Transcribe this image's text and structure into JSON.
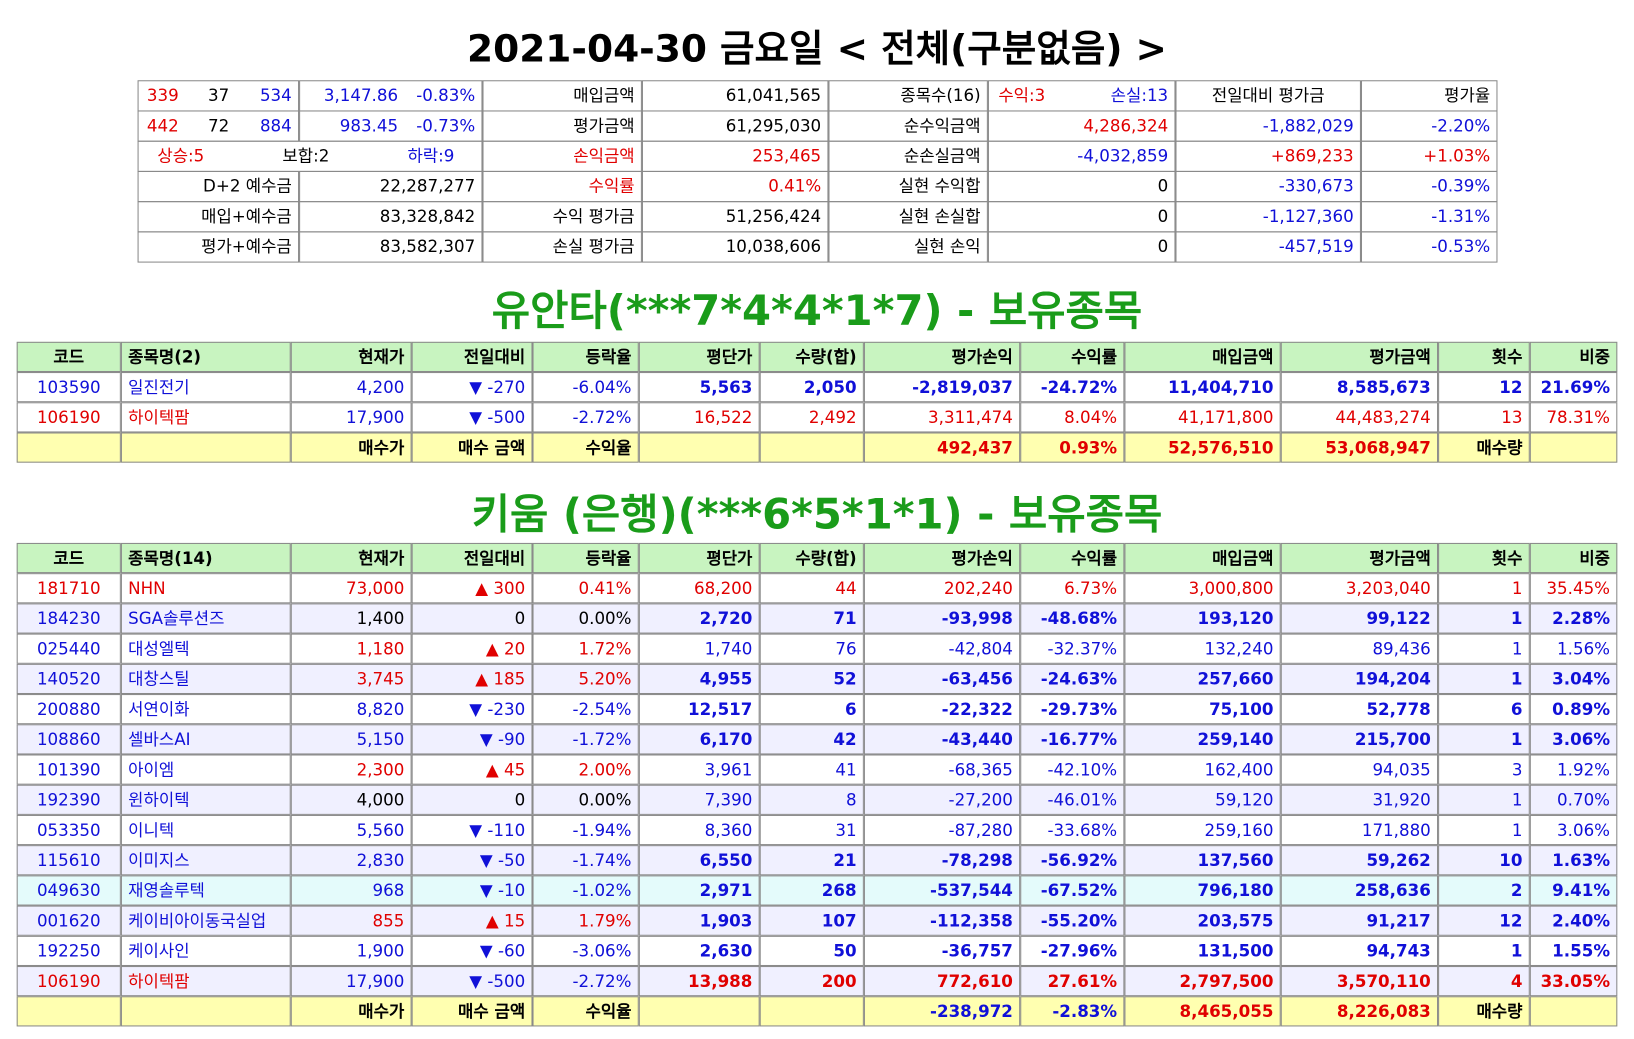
{
  "header": {
    "title": "2021-04-30 금요일 < 전체(구분없음) >"
  },
  "summary": {
    "rows": [
      [
        [
          "339",
          "37",
          "534"
        ],
        [
          "3,147.86",
          "-0.83%"
        ],
        "매입금액",
        "61,041,565",
        "종목수(16)",
        [
          "수익:3",
          "손실:13"
        ],
        "전일대비 평가금",
        "평가율"
      ],
      [
        [
          "442",
          "72",
          "884"
        ],
        [
          "983.45",
          "-0.73%"
        ],
        "평가금액",
        "61,295,030",
        "순수익금액",
        "4,286,324",
        "-1,882,029",
        "-2.20%"
      ],
      [
        [
          "상승:5",
          "보합:2",
          "하락:9"
        ],
        "손익금액",
        "253,465",
        "순손실금액",
        "-4,032,859",
        "+869,233",
        "+1.03%"
      ],
      [
        "D+2 예수금",
        "22,287,277",
        "수익률",
        "0.41%",
        "실현 수익합",
        "0",
        "-330,673",
        "-0.39%"
      ],
      [
        "매입+예수금",
        "83,328,842",
        "수익 평가금",
        "51,256,424",
        "실현 손실합",
        "0",
        "-1,127,360",
        "-1.31%"
      ],
      [
        "평가+예수금",
        "83,582,307",
        "손실 평가금",
        "10,038,606",
        "실현 손익",
        "0",
        "-457,519",
        "-0.53%"
      ]
    ]
  },
  "holdings1": {
    "title": "유안타(***7*4*4*1*7) - 보유종목",
    "header": [
      "코드",
      "종목명(2)",
      "현재가",
      "전일대비",
      "등락율",
      "평단가",
      "수량(합)",
      "평가손익",
      "수익률",
      "매입금액",
      "평가금액",
      "횟수",
      "비중"
    ],
    "rows": [
      [
        "103590",
        "일진전기",
        "4,200",
        "▼ -270",
        "-6.04%",
        "5,563",
        "2,050",
        "-2,819,037",
        "-24.72%",
        "11,404,710",
        "8,585,673",
        "12",
        "21.69%"
      ],
      [
        "106190",
        "하이텍팜",
        "17,900",
        "▼ -500",
        "-2.72%",
        "16,522",
        "2,492",
        "3,311,474",
        "8.04%",
        "41,171,800",
        "44,483,274",
        "13",
        "78.31%"
      ]
    ],
    "footer": [
      null,
      null,
      "매수가",
      "매수 금액",
      "수익율",
      null,
      null,
      "492,437",
      "0.93%",
      "52,576,510",
      "53,068,947",
      "매수량",
      null
    ]
  },
  "holdings2": {
    "title": "키움 (은행)(***6*5*1*1) - 보유종목",
    "header": [
      "코드",
      "종목명(14)",
      "현재가",
      "전일대비",
      "등락율",
      "평단가",
      "수량(합)",
      "평가손익",
      "수익률",
      "매입금액",
      "평가금액",
      "횟수",
      "비중"
    ],
    "rows": [
      [
        "181710",
        "NHN",
        "73,000",
        "▲ 300",
        "0.41%",
        "68,200",
        "44",
        "202,240",
        "6.73%",
        "3,000,800",
        "3,203,040",
        "1",
        "35.45%"
      ],
      [
        "184230",
        "SGA솔루션즈",
        "1,400",
        "0",
        "0.00%",
        "2,720",
        "71",
        "-93,998",
        "-48.68%",
        "193,120",
        "99,122",
        "1",
        "2.28%"
      ],
      [
        "025440",
        "대성엘텍",
        "1,180",
        "▲ 20",
        "1.72%",
        "1,740",
        "76",
        "-42,804",
        "-32.37%",
        "132,240",
        "89,436",
        "1",
        "1.56%"
      ],
      [
        "140520",
        "대창스틸",
        "3,745",
        "▲ 185",
        "5.20%",
        "4,955",
        "52",
        "-63,456",
        "-24.63%",
        "257,660",
        "194,204",
        "1",
        "3.04%"
      ],
      [
        "200880",
        "서연이화",
        "8,820",
        "▼ -230",
        "-2.54%",
        "12,517",
        "6",
        "-22,322",
        "-29.73%",
        "75,100",
        "52,778",
        "6",
        "0.89%"
      ],
      [
        "108860",
        "셀바스AI",
        "5,150",
        "▼ -90",
        "-1.72%",
        "6,170",
        "42",
        "-43,440",
        "-16.77%",
        "259,140",
        "215,700",
        "1",
        "3.06%"
      ],
      [
        "101390",
        "아이엠",
        "2,300",
        "▲ 45",
        "2.00%",
        "3,961",
        "41",
        "-68,365",
        "-42.10%",
        "162,400",
        "94,035",
        "3",
        "1.92%"
      ],
      [
        "192390",
        "윈하이텍",
        "4,000",
        "0",
        "0.00%",
        "7,390",
        "8",
        "-27,200",
        "-46.01%",
        "59,120",
        "31,920",
        "1",
        "0.70%"
      ],
      [
        "053350",
        "이니텍",
        "5,560",
        "▼ -110",
        "-1.94%",
        "8,360",
        "31",
        "-87,280",
        "-33.68%",
        "259,160",
        "171,880",
        "1",
        "3.06%"
      ],
      [
        "115610",
        "이미지스",
        "2,830",
        "▼ -50",
        "-1.74%",
        "6,550",
        "21",
        "-78,298",
        "-56.92%",
        "137,560",
        "59,262",
        "10",
        "1.63%"
      ],
      [
        "049630",
        "재영솔루텍",
        "968",
        "▼ -10",
        "-1.02%",
        "2,971",
        "268",
        "-537,544",
        "-67.52%",
        "796,180",
        "258,636",
        "2",
        "9.41%"
      ],
      [
        "001620",
        "케이비아이동국실업",
        "855",
        "▲ 15",
        "1.79%",
        "1,903",
        "107",
        "-112,358",
        "-55.20%",
        "203,575",
        "91,217",
        "12",
        "2.40%"
      ],
      [
        "192250",
        "케이사인",
        "1,900",
        "▼ -60",
        "-3.06%",
        "2,630",
        "50",
        "-36,757",
        "-27.96%",
        "131,500",
        "94,743",
        "1",
        "1.55%"
      ],
      [
        "106190",
        "하이텍팜",
        "17,900",
        "▼ -500",
        "-2.72%",
        "13,988",
        "200",
        "772,610",
        "27.61%",
        "2,797,500",
        "3,570,110",
        "4",
        "33.05%"
      ]
    ],
    "footer": [
      null,
      null,
      "매수가",
      "매수 금액",
      "수익율",
      null,
      null,
      "-238,972",
      "-2.83%",
      "8,465,055",
      "8,226,083",
      "매수량",
      null
    ]
  }
}
